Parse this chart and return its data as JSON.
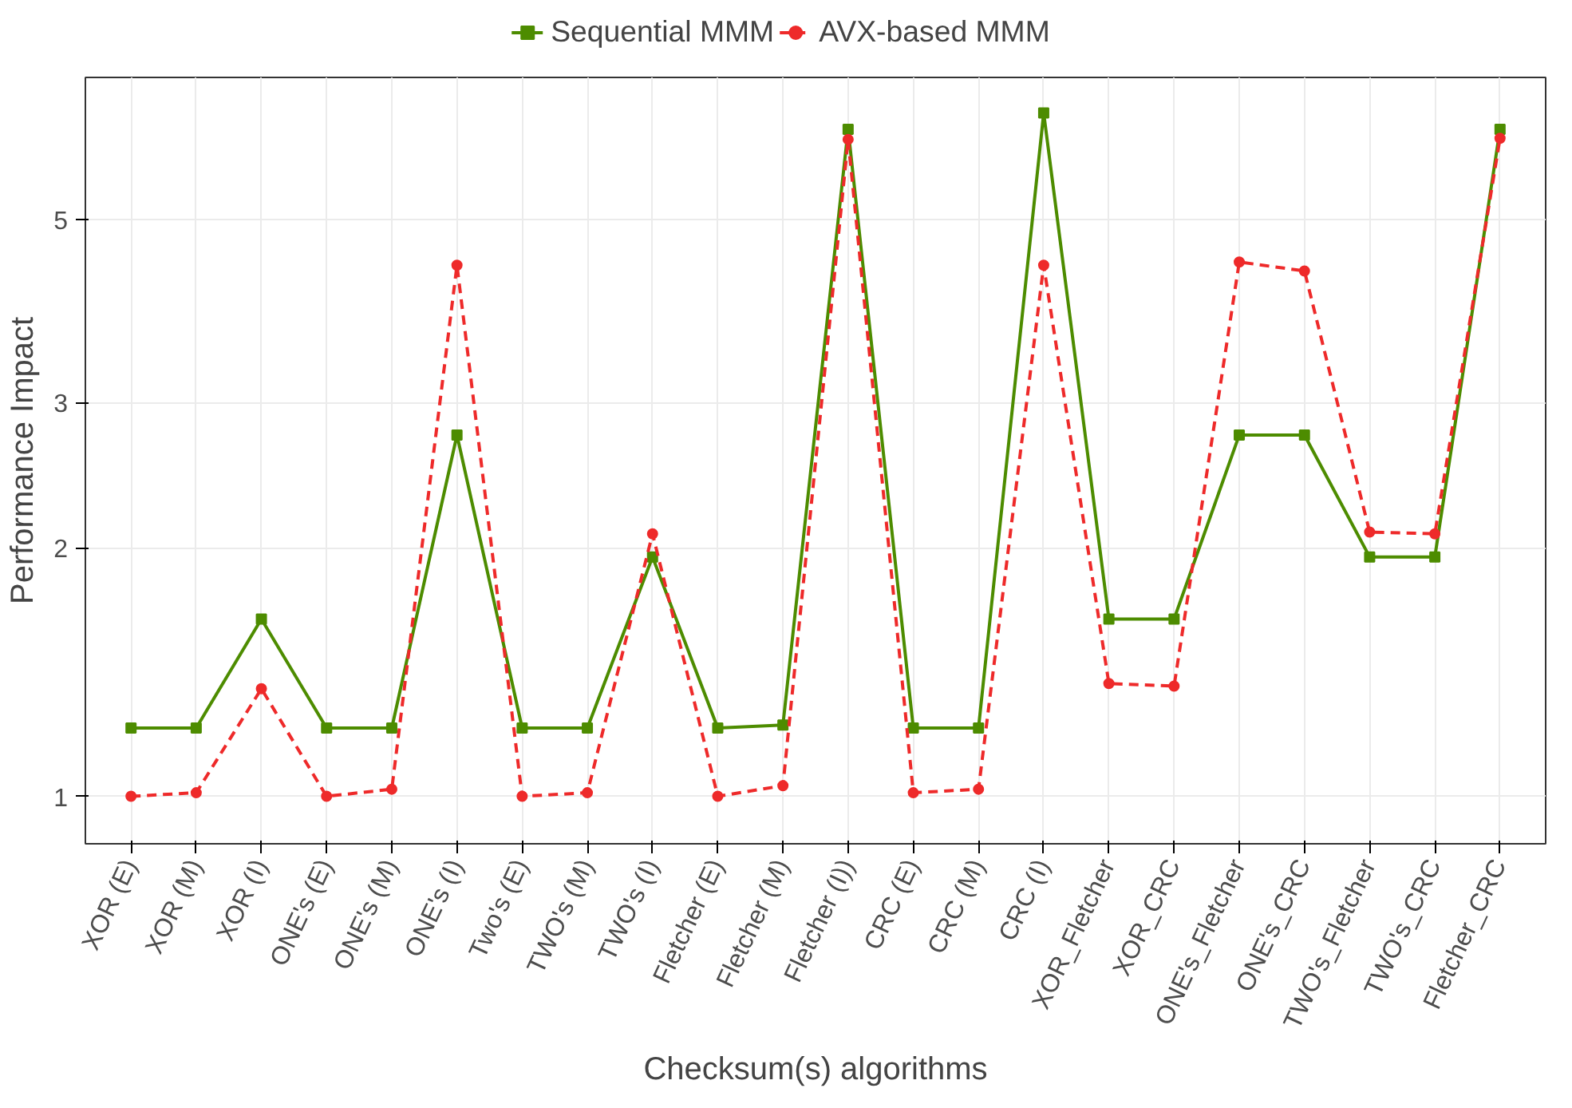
{
  "chart_data": {
    "type": "line",
    "xlabel": "Checksum(s) algorithms",
    "ylabel": "Performance Impact",
    "categories": [
      "XOR (E)",
      "XOR (M)",
      "XOR (I)",
      "ONE's (E)",
      "ONE's (M)",
      "ONE's (I)",
      "Two's (E)",
      "TWO's (M)",
      "TWO's (I)",
      "Fletcher (E)",
      "Fletcher (M)",
      "Fletcher (I))",
      "CRC (E)",
      "CRC (M)",
      "CRC (I)",
      "XOR_Fletcher",
      "XOR_CRC",
      "ONE's_Fletcher",
      "ONE's_CRC",
      "TWO's_Fletcher",
      "TWO's_CRC",
      "Fletcher_CRC"
    ],
    "series": [
      {
        "name": "Sequential MMM",
        "color": "#4d8c00",
        "marker": "square",
        "line_style": "solid",
        "values": [
          1.21,
          1.21,
          1.64,
          1.21,
          1.21,
          2.74,
          1.21,
          1.21,
          1.95,
          1.21,
          1.22,
          6.43,
          1.21,
          1.21,
          6.73,
          1.64,
          1.64,
          2.74,
          2.74,
          1.95,
          1.95,
          6.43
        ]
      },
      {
        "name": "AVX-based MMM",
        "color": "#ee2a2a",
        "marker": "circle",
        "line_style": "dashed",
        "values": [
          1.0,
          1.01,
          1.35,
          1.0,
          1.02,
          4.4,
          1.0,
          1.01,
          2.08,
          1.0,
          1.03,
          6.25,
          1.01,
          1.02,
          4.4,
          1.37,
          1.36,
          4.44,
          4.33,
          2.09,
          2.08,
          6.27
        ]
      }
    ],
    "log": "y",
    "ylim": [
      0.876,
      7.43
    ],
    "yticks": [
      1,
      2,
      3,
      5
    ],
    "grid": true,
    "legend": "top"
  }
}
